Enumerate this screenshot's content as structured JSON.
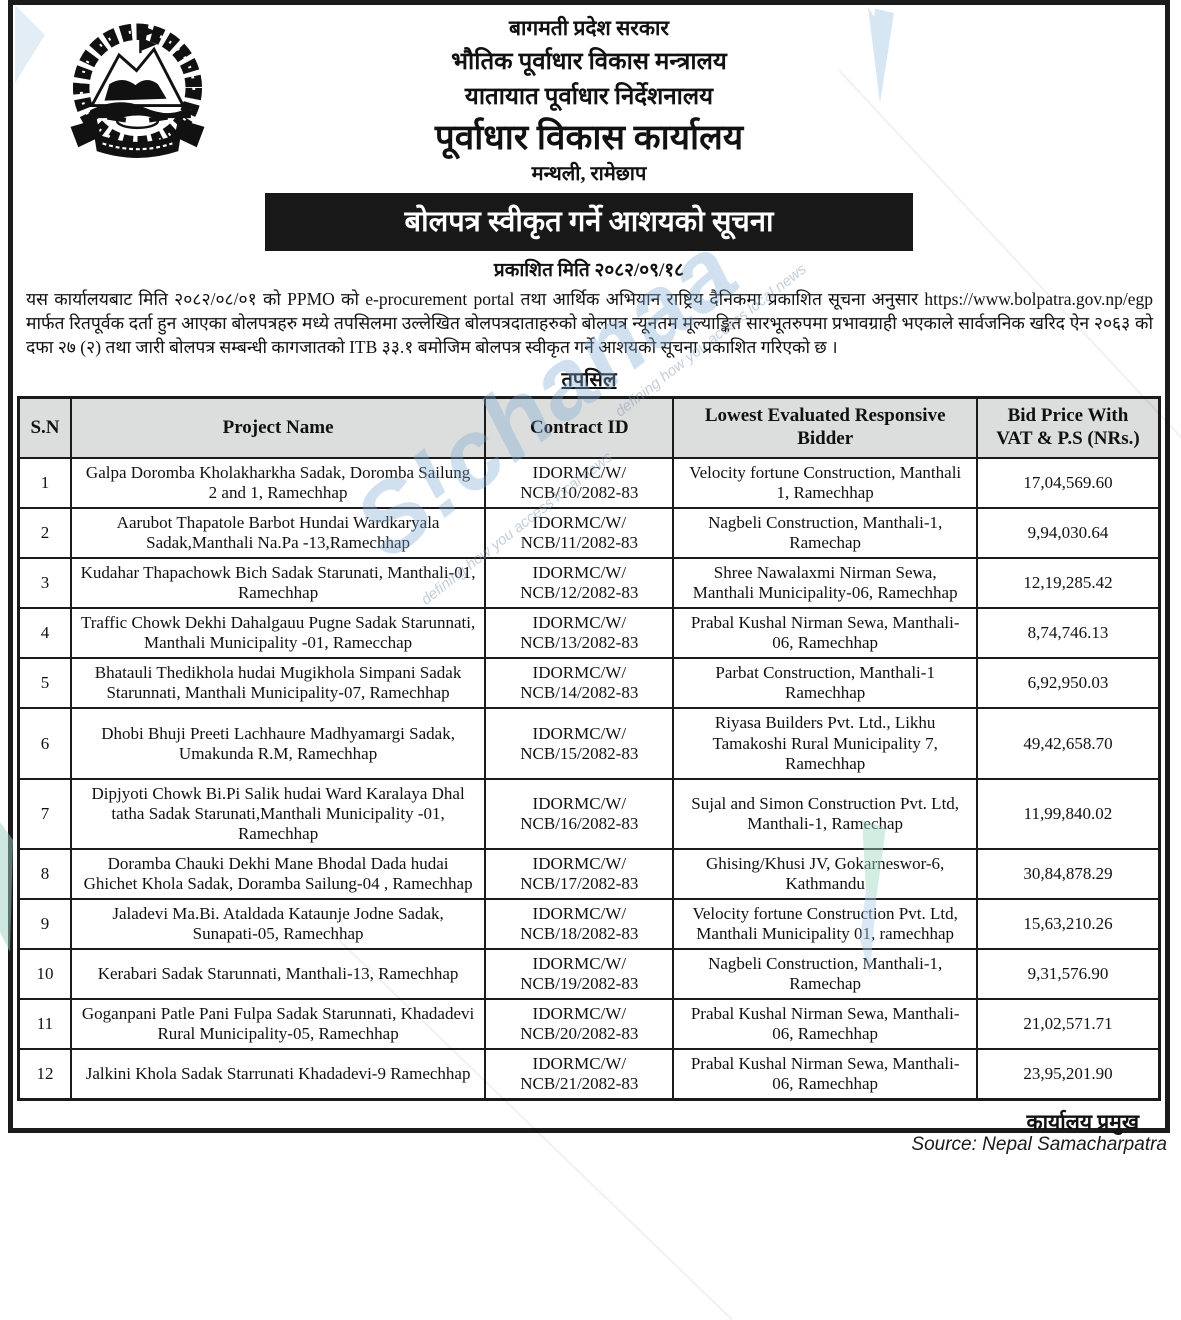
{
  "header": {
    "emblem": "nepal-government-emblem",
    "org_line1": "बागमती प्रदेश सरकार",
    "org_line2": "भौतिक पूर्वाधार विकास मन्त्रालय",
    "org_line3": "यातायात पूर्वाधार निर्देशनालय",
    "office_name": "पूर्वाधार विकास कार्यालय",
    "location": "मन्थली, रामेछाप"
  },
  "notice": {
    "title": "बोलपत्र स्वीकृत गर्ने आशयको सूचना",
    "published_date_line": "प्रकाशित मिति २०८२/०९/१८",
    "body": "यस कार्यालयबाट मिति २०८२/०८/०१ को PPMO को e-procurement portal  तथा आर्थिक अभियान राष्ट्रिय दैनिकमा प्रकाशित सूचना अनुसार https://www.bolpatra.gov.np/egp मार्फत रितपूर्वक दर्ता हुन आएका बोलपत्रहरु मध्ये तपसिलमा उल्लेखित बोलपत्रदाताहरुको बोलपत्र न्यूनतम मूल्याङ्कित सारभूतरुपमा प्रभावग्राही भएकाले सार्वजनिक खरिद ऐन २०६३ को दफा २७ (२) तथा जारी बोलपत्र सम्बन्धी कागजातको ITB ३३.१ बमोजिम बोलपत्र स्वीकृत गर्ने आशयको सूचना प्रकाशित गरिएको छ ।",
    "table_caption": "तपसिल",
    "signature": "कार्यालय प्रमुख"
  },
  "table": {
    "headers": [
      "S.N",
      "Project Name",
      "Contract ID",
      "Lowest Evaluated Responsive Bidder",
      "Bid Price With\nVAT & P.S  (NRs.)"
    ],
    "rows": [
      {
        "sn": "1",
        "project": "Galpa Doromba Kholakharkha Sadak, Doromba Sailung 2 and 1, Ramechhap",
        "contract_id": "IDORMC/W/\nNCB/10/2082-83",
        "bidder": "Velocity fortune Construction, Manthali 1, Ramechhap",
        "bid_price": "17,04,569.60"
      },
      {
        "sn": "2",
        "project": "Aarubot Thapatole Barbot Hundai Wardkaryala Sadak,Manthali Na.Pa -13,Ramechhap",
        "contract_id": "IDORMC/W/\nNCB/11/2082-83",
        "bidder": "Nagbeli Construction, Manthali-1, Ramechap",
        "bid_price": "9,94,030.64"
      },
      {
        "sn": "3",
        "project": "Kudahar Thapachowk Bich Sadak Starunati, Manthali-01, Ramechhap",
        "contract_id": "IDORMC/W/\nNCB/12/2082-83",
        "bidder": "Shree Nawalaxmi Nirman Sewa, Manthali Municipality-06, Ramechhap",
        "bid_price": "12,19,285.42"
      },
      {
        "sn": "4",
        "project": "Traffic Chowk Dekhi Dahalgauu Pugne Sadak Starunnati, Manthali  Municipality -01, Ramecchap",
        "contract_id": "IDORMC/W/\nNCB/13/2082-83",
        "bidder": "Prabal Kushal Nirman Sewa, Manthali-06, Ramechhap",
        "bid_price": "8,74,746.13"
      },
      {
        "sn": "5",
        "project": "Bhatauli Thedikhola hudai Mugikhola Simpani Sadak Starunnati, Manthali Municipality-07, Ramechhap",
        "contract_id": "IDORMC/W/\nNCB/14/2082-83",
        "bidder": "Parbat Construction, Manthali-1 Ramechhap",
        "bid_price": "6,92,950.03"
      },
      {
        "sn": "6",
        "project": "Dhobi Bhuji Preeti Lachhaure Madhyamargi  Sadak, Umakunda R.M, Ramechhap",
        "contract_id": "IDORMC/W/\nNCB/15/2082-83",
        "bidder": "Riyasa Builders Pvt. Ltd., Likhu Tamakoshi Rural Municipality 7, Ramechhap",
        "bid_price": "49,42,658.70"
      },
      {
        "sn": "7",
        "project": "Dipjyoti Chowk Bi.Pi Salik hudai Ward Karalaya Dhal tatha Sadak Starunati,Manthali Municipality -01, Ramechhap",
        "contract_id": "IDORMC/W/\nNCB/16/2082-83",
        "bidder": "Sujal and Simon Construction Pvt. Ltd, Manthali-1, Ramechap",
        "bid_price": "11,99,840.02"
      },
      {
        "sn": "8",
        "project": "Doramba Chauki Dekhi Mane Bhodal Dada hudai Ghichet Khola Sadak, Doramba Sailung-04 , Ramechhap",
        "contract_id": "IDORMC/W/\nNCB/17/2082-83",
        "bidder": "Ghising/Khusi JV, Gokarneswor-6, Kathmandu",
        "bid_price": "30,84,878.29"
      },
      {
        "sn": "9",
        "project": "Jaladevi Ma.Bi. Ataldada Kataunje Jodne Sadak, Sunapati-05, Ramechhap",
        "contract_id": "IDORMC/W/\nNCB/18/2082-83",
        "bidder": "Velocity fortune Construction Pvt. Ltd, Manthali Municipality 01, ramechhap",
        "bid_price": "15,63,210.26"
      },
      {
        "sn": "10",
        "project": "Kerabari Sadak Starunnati, Manthali-13, Ramechhap",
        "contract_id": "IDORMC/W/\nNCB/19/2082-83",
        "bidder": "Nagbeli Construction, Manthali-1, Ramechap",
        "bid_price": "9,31,576.90"
      },
      {
        "sn": "11",
        "project": "Goganpani Patle Pani Fulpa Sadak Starunnati, Khadadevi Rural Municipality-05, Ramechhap",
        "contract_id": "IDORMC/W/\nNCB/20/2082-83",
        "bidder": "Prabal Kushal Nirman Sewa, Manthali-06, Ramechhap",
        "bid_price": "21,02,571.71"
      },
      {
        "sn": "12",
        "project": "Jalkini Khola Sadak Starrunati Khadadevi-9 Ramechhap",
        "contract_id": "IDORMC/W/\nNCB/21/2082-83",
        "bidder": "Prabal Kushal Nirman Sewa, Manthali-06, Ramechhap",
        "bid_price": "23,95,201.90"
      }
    ]
  },
  "watermark": {
    "brand": "S!chanaa",
    "tagline": "defining how you access local news"
  },
  "footer": {
    "source_credit": "Source: Nepal Samacharpatra"
  },
  "colors": {
    "border_black": "#1b1b1b",
    "banner_black": "#181818",
    "header_row_gray": "#dcdddd",
    "watermark_blue": "#7ca8d4",
    "watermark_teal": "#8fd0bd"
  }
}
